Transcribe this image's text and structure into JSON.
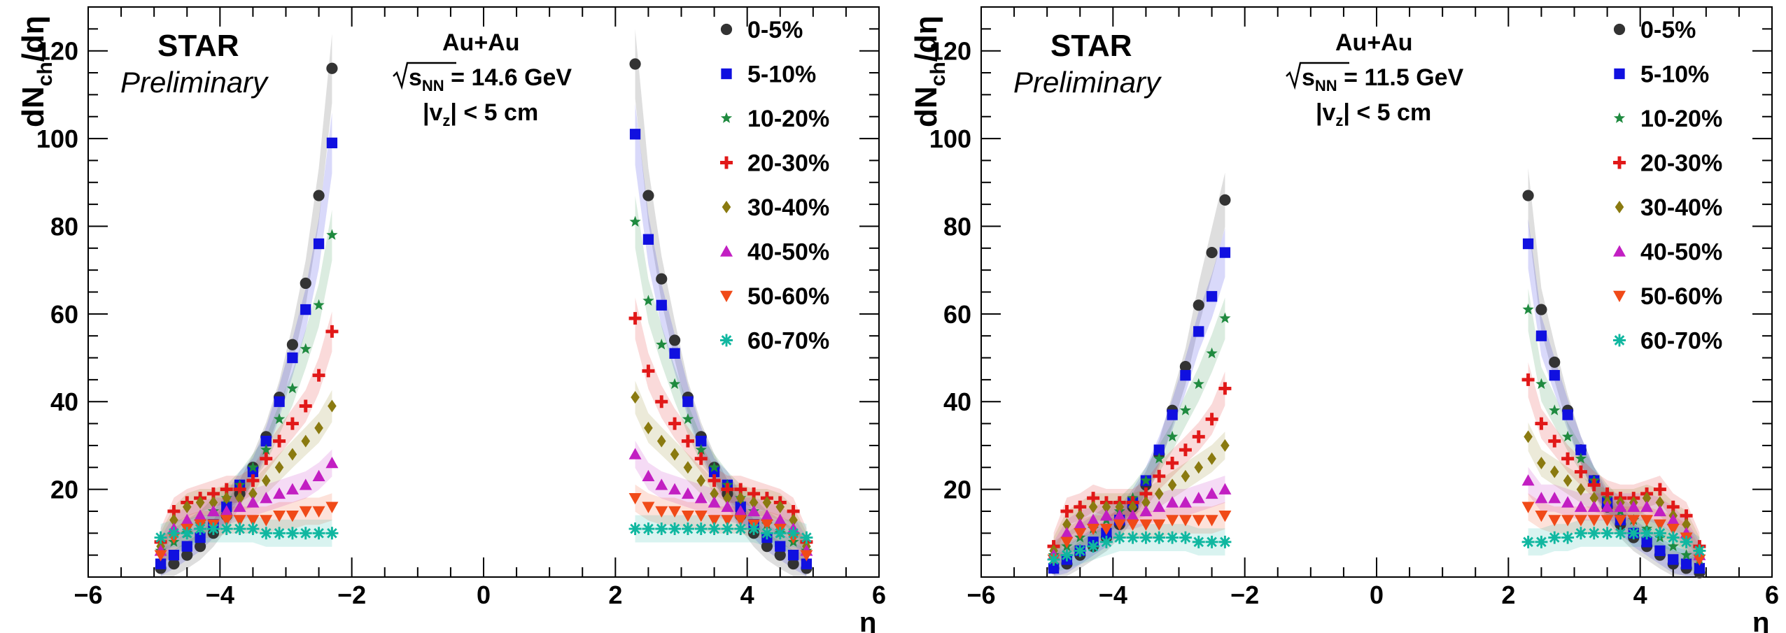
{
  "chart_data": [
    {
      "type": "scatter",
      "panel_id": "left",
      "title": "",
      "annotations": {
        "experiment": "STAR",
        "status": "Preliminary",
        "system": "Au+Au",
        "energy_prefix": "s",
        "energy_sub": "NN",
        "energy_value": " = 14.6 GeV",
        "vz_prefix": "|v",
        "vz_sub": "z",
        "vz_value": "| < 5 cm"
      },
      "xlabel": "η",
      "ylabel_main": "dN",
      "ylabel_sub": "ch",
      "ylabel_tail": "/dη",
      "xlim": [
        -6,
        6
      ],
      "ylim": [
        0,
        130
      ],
      "xticks": [
        "−6",
        "−4",
        "−2",
        "0",
        "2",
        "4",
        "6"
      ],
      "yticks": [
        "20",
        "40",
        "60",
        "80",
        "100",
        "120"
      ],
      "legend_position": "top-right",
      "x": [
        -4.9,
        -4.7,
        -4.5,
        -4.3,
        -4.1,
        -3.9,
        -3.7,
        -3.5,
        -3.3,
        -3.1,
        -2.9,
        -2.7,
        -2.5,
        -2.3,
        2.3,
        2.5,
        2.7,
        2.9,
        3.1,
        3.3,
        3.5,
        3.7,
        3.9,
        4.1,
        4.3,
        4.5,
        4.7,
        4.9
      ],
      "series": [
        {
          "name": "0-5%",
          "values": [
            2,
            3,
            5,
            7,
            10,
            14,
            19,
            25,
            32,
            41,
            53,
            67,
            87,
            116,
            117,
            87,
            68,
            54,
            41,
            32,
            25,
            19,
            14,
            10,
            7,
            5,
            3,
            2
          ]
        },
        {
          "name": "5-10%",
          "values": [
            3,
            5,
            7,
            9,
            12,
            16,
            21,
            24,
            31,
            40,
            50,
            61,
            76,
            99,
            101,
            77,
            62,
            51,
            40,
            31,
            24,
            21,
            16,
            12,
            9,
            7,
            5,
            3
          ]
        },
        {
          "name": "10-20%",
          "values": [
            6,
            8,
            10,
            12,
            15,
            18,
            21,
            25,
            29,
            36,
            43,
            52,
            62,
            78,
            81,
            63,
            53,
            44,
            36,
            29,
            25,
            21,
            18,
            15,
            12,
            10,
            8,
            6
          ]
        },
        {
          "name": "20-30%",
          "values": [
            8,
            15,
            17,
            18,
            19,
            20,
            20,
            22,
            27,
            31,
            35,
            39,
            46,
            56,
            59,
            47,
            40,
            35,
            31,
            27,
            22,
            20,
            20,
            19,
            18,
            17,
            15,
            8
          ]
        },
        {
          "name": "30-40%",
          "values": [
            7,
            13,
            16,
            17,
            17,
            18,
            18,
            19,
            22,
            25,
            28,
            31,
            34,
            39,
            41,
            34,
            31,
            28,
            25,
            22,
            19,
            18,
            18,
            17,
            17,
            16,
            13,
            7
          ]
        },
        {
          "name": "40-50%",
          "values": [
            6,
            11,
            13,
            14,
            15,
            15,
            16,
            17,
            18,
            19,
            20,
            21,
            23,
            26,
            28,
            23,
            21,
            20,
            19,
            18,
            17,
            16,
            15,
            15,
            14,
            13,
            11,
            6
          ]
        },
        {
          "name": "50-60%",
          "values": [
            5,
            9,
            11,
            12,
            12,
            13,
            13,
            13,
            13,
            14,
            14,
            15,
            15,
            16,
            18,
            16,
            15,
            15,
            14,
            14,
            13,
            13,
            13,
            12,
            12,
            11,
            9,
            5
          ]
        },
        {
          "name": "60-70%",
          "values": [
            9,
            10,
            10,
            11,
            11,
            11,
            11,
            11,
            10,
            10,
            10,
            10,
            10,
            10,
            11,
            11,
            11,
            11,
            11,
            11,
            11,
            11,
            11,
            11,
            10,
            10,
            10,
            9
          ]
        }
      ]
    },
    {
      "type": "scatter",
      "panel_id": "right",
      "title": "",
      "annotations": {
        "experiment": "STAR",
        "status": "Preliminary",
        "system": "Au+Au",
        "energy_prefix": "s",
        "energy_sub": "NN",
        "energy_value": " = 11.5 GeV",
        "vz_prefix": "|v",
        "vz_sub": "z",
        "vz_value": "| < 5 cm"
      },
      "xlabel": "η",
      "ylabel_main": "dN",
      "ylabel_sub": "ch",
      "ylabel_tail": "/dη",
      "xlim": [
        -6,
        6
      ],
      "ylim": [
        0,
        130
      ],
      "xticks": [
        "−6",
        "−4",
        "−2",
        "0",
        "2",
        "4",
        "6"
      ],
      "yticks": [
        "20",
        "40",
        "60",
        "80",
        "100",
        "120"
      ],
      "legend_position": "top-right",
      "x": [
        -4.9,
        -4.7,
        -4.5,
        -4.3,
        -4.1,
        -3.9,
        -3.7,
        -3.5,
        -3.3,
        -3.1,
        -2.9,
        -2.7,
        -2.5,
        -2.3,
        2.3,
        2.5,
        2.7,
        2.9,
        3.1,
        3.3,
        3.5,
        3.7,
        3.9,
        4.1,
        4.3,
        4.5,
        4.7,
        4.9
      ],
      "series": [
        {
          "name": "0-5%",
          "values": [
            2,
            3,
            5,
            7,
            9,
            12,
            16,
            21,
            28,
            38,
            48,
            62,
            74,
            86,
            87,
            61,
            49,
            38,
            29,
            22,
            16,
            12,
            9,
            7,
            5,
            3,
            2,
            1
          ]
        },
        {
          "name": "5-10%",
          "values": [
            2,
            4,
            6,
            8,
            10,
            13,
            17,
            22,
            29,
            37,
            46,
            56,
            64,
            74,
            76,
            55,
            46,
            37,
            29,
            22,
            17,
            13,
            10,
            8,
            6,
            4,
            3,
            2
          ]
        },
        {
          "name": "10-20%",
          "values": [
            5,
            7,
            9,
            11,
            13,
            15,
            18,
            22,
            27,
            32,
            38,
            44,
            51,
            59,
            61,
            44,
            38,
            32,
            27,
            22,
            18,
            15,
            13,
            11,
            9,
            7,
            5,
            4
          ]
        },
        {
          "name": "20-30%",
          "values": [
            7,
            15,
            16,
            18,
            17,
            17,
            17,
            19,
            23,
            26,
            29,
            32,
            36,
            43,
            45,
            35,
            31,
            27,
            24,
            21,
            19,
            18,
            18,
            19,
            20,
            16,
            14,
            7
          ]
        },
        {
          "name": "30-40%",
          "values": [
            6,
            12,
            14,
            16,
            16,
            16,
            16,
            17,
            19,
            21,
            23,
            25,
            27,
            30,
            32,
            26,
            24,
            22,
            20,
            18,
            17,
            17,
            17,
            18,
            17,
            14,
            12,
            6
          ]
        },
        {
          "name": "40-50%",
          "values": [
            5,
            10,
            12,
            13,
            14,
            14,
            14,
            15,
            16,
            17,
            17,
            18,
            19,
            20,
            22,
            18,
            18,
            17,
            16,
            16,
            16,
            16,
            16,
            16,
            15,
            13,
            10,
            5
          ]
        },
        {
          "name": "50-60%",
          "values": [
            4,
            8,
            10,
            11,
            11,
            12,
            12,
            12,
            12,
            13,
            13,
            13,
            13,
            14,
            16,
            14,
            13,
            13,
            13,
            13,
            13,
            13,
            13,
            13,
            12,
            11,
            9,
            4
          ]
        },
        {
          "name": "60-70%",
          "values": [
            4,
            5,
            6,
            7,
            8,
            9,
            9,
            9,
            9,
            9,
            9,
            8,
            8,
            8,
            8,
            8,
            9,
            9,
            10,
            10,
            10,
            10,
            10,
            10,
            10,
            9,
            8,
            6
          ]
        }
      ]
    }
  ],
  "legend_colors": [
    "#333333",
    "#1010e0",
    "#1f8a3f",
    "#e11818",
    "#8a7a10",
    "#c21fc2",
    "#f04a18",
    "#10b7a0"
  ],
  "legend_markers": [
    "circle",
    "square",
    "star",
    "cross",
    "diamond",
    "triangle-up",
    "triangle-down",
    "asterisk"
  ]
}
